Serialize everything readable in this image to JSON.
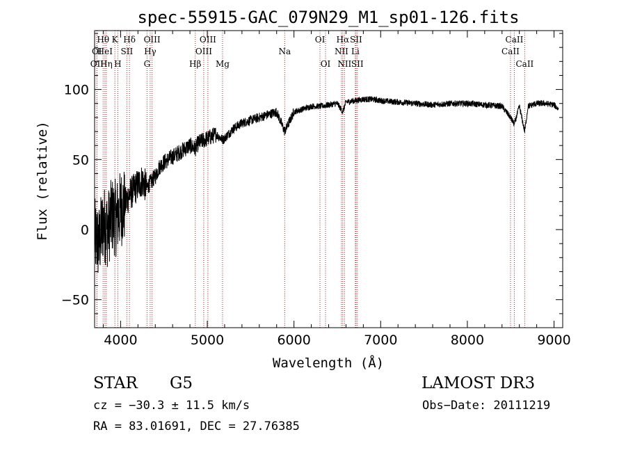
{
  "chart_data": {
    "type": "line",
    "title": "spec-55915-GAC_079N29_M1_sp01-126.fits",
    "xlabel": "Wavelength (Å)",
    "ylabel": "Flux (relative)",
    "xlim": [
      3700,
      9100
    ],
    "ylim": [
      -70,
      142
    ],
    "xticks": [
      4000,
      5000,
      6000,
      7000,
      8000,
      9000
    ],
    "yticks": [
      -50,
      0,
      50,
      100
    ],
    "series": [
      {
        "name": "spectrum",
        "x": [
          3700,
          3750,
          3800,
          3850,
          3900,
          3950,
          4000,
          4050,
          4100,
          4150,
          4200,
          4250,
          4300,
          4350,
          4400,
          4450,
          4500,
          4600,
          4700,
          4800,
          4861,
          4900,
          5000,
          5100,
          5183,
          5300,
          5400,
          5500,
          5600,
          5700,
          5800,
          5893,
          6000,
          6100,
          6200,
          6300,
          6400,
          6500,
          6563,
          6600,
          6700,
          6800,
          6900,
          7000,
          7200,
          7400,
          7600,
          7800,
          8000,
          8200,
          8400,
          8498,
          8542,
          8600,
          8662,
          8700,
          8800,
          8900,
          9000,
          9050
        ],
        "y": [
          -5,
          -10,
          5,
          0,
          10,
          8,
          15,
          18,
          25,
          28,
          32,
          35,
          30,
          34,
          38,
          45,
          48,
          52,
          56,
          60,
          58,
          62,
          65,
          68,
          64,
          72,
          76,
          78,
          80,
          82,
          84,
          70,
          84,
          86,
          88,
          88,
          89,
          90,
          84,
          91,
          92,
          93,
          93,
          92,
          91,
          90,
          89,
          90,
          90,
          89,
          88,
          80,
          75,
          88,
          70,
          88,
          90,
          90,
          89,
          86
        ]
      }
    ],
    "lines": [
      {
        "name": "OI",
        "wave": 3726,
        "row": 2
      },
      {
        "name": "OII",
        "wave": 3727,
        "row": 3
      },
      {
        "name": "Hθ",
        "wave": 3798,
        "row": 1
      },
      {
        "name": "HeI",
        "wave": 3819,
        "row": 2
      },
      {
        "name": "Hη",
        "wave": 3835,
        "row": 3
      },
      {
        "name": "K",
        "wave": 3934,
        "row": 1
      },
      {
        "name": "H",
        "wave": 3968,
        "row": 3
      },
      {
        "name": "SII",
        "wave": 4072,
        "row": 2
      },
      {
        "name": "Hδ",
        "wave": 4102,
        "row": 1
      },
      {
        "name": "G",
        "wave": 4305,
        "row": 3
      },
      {
        "name": "Hγ",
        "wave": 4341,
        "row": 2
      },
      {
        "name": "OIII",
        "wave": 4363,
        "row": 1
      },
      {
        "name": "Hβ",
        "wave": 4861,
        "row": 3
      },
      {
        "name": "OIII",
        "wave": 4959,
        "row": 2
      },
      {
        "name": "OIII",
        "wave": 5007,
        "row": 1
      },
      {
        "name": "Mg",
        "wave": 5176,
        "row": 3
      },
      {
        "name": "Na",
        "wave": 5893,
        "row": 2
      },
      {
        "name": "OI",
        "wave": 6300,
        "row": 1
      },
      {
        "name": "OI",
        "wave": 6364,
        "row": 3
      },
      {
        "name": "NII",
        "wave": 6548,
        "row": 2
      },
      {
        "name": "Hα",
        "wave": 6563,
        "row": 1
      },
      {
        "name": "NII",
        "wave": 6583,
        "row": 3
      },
      {
        "name": "Li",
        "wave": 6708,
        "row": 2
      },
      {
        "name": "SII",
        "wave": 6716,
        "row": 1
      },
      {
        "name": "SII",
        "wave": 6731,
        "row": 3
      },
      {
        "name": "CaII",
        "wave": 8498,
        "row": 2
      },
      {
        "name": "CaII",
        "wave": 8542,
        "row": 1
      },
      {
        "name": "CaII",
        "wave": 8662,
        "row": 3
      }
    ],
    "colors": {
      "spectrum": "#000000",
      "line_marker": "#b22222"
    }
  },
  "info": {
    "class": "STAR",
    "subclass": "G5",
    "survey": "LAMOST DR3",
    "cz": "cz = −30.3 ± 11.5 km/s",
    "obs_date": "Obs−Date: 20111219",
    "coords": "RA =  83.01691, DEC =  27.76385"
  }
}
